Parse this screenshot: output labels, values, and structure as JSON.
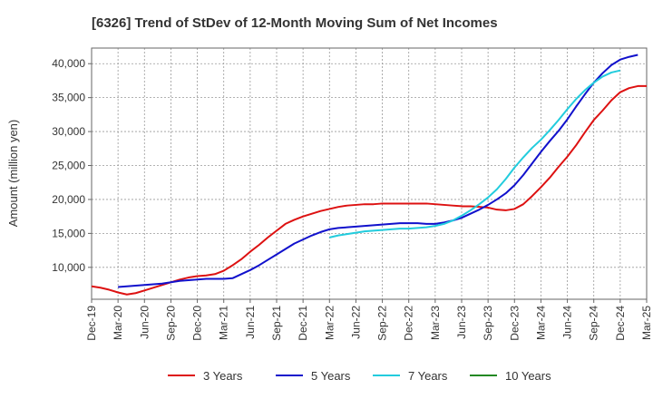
{
  "chart_data": {
    "type": "line",
    "title": "[6326]  Trend of StDev of 12-Month Moving Sum of Net Incomes",
    "xlabel": "",
    "ylabel": "Amount (million yen)",
    "x_ticks": [
      "Dec-19",
      "Mar-20",
      "Jun-20",
      "Sep-20",
      "Dec-20",
      "Mar-21",
      "Jun-21",
      "Sep-21",
      "Dec-21",
      "Mar-22",
      "Jun-22",
      "Sep-22",
      "Dec-22",
      "Mar-23",
      "Jun-23",
      "Sep-23",
      "Dec-23",
      "Mar-24",
      "Jun-24",
      "Sep-24",
      "Dec-24",
      "Mar-25"
    ],
    "y_ticks": [
      10000,
      15000,
      20000,
      25000,
      30000,
      35000,
      40000
    ],
    "y_tick_labels": [
      "10,000",
      "15,000",
      "20,000",
      "25,000",
      "30,000",
      "35,000",
      "40,000"
    ],
    "ylim": [
      5300,
      42300
    ],
    "grid": true,
    "legend_position": "bottom",
    "series": [
      {
        "name": "3 Years",
        "color": "#dd1111",
        "start": "Dec-19",
        "values": [
          7200,
          7000,
          6700,
          6300,
          6000,
          6200,
          6600,
          7000,
          7400,
          7800,
          8200,
          8500,
          8700,
          8800,
          9000,
          9500,
          10300,
          11200,
          12300,
          13300,
          14400,
          15400,
          16400,
          17000,
          17500,
          17900,
          18300,
          18600,
          18900,
          19100,
          19200,
          19300,
          19300,
          19400,
          19400,
          19400,
          19400,
          19400,
          19400,
          19300,
          19200,
          19100,
          19000,
          19000,
          18900,
          18800,
          18500,
          18400,
          18600,
          19300,
          20500,
          21800,
          23200,
          24800,
          26300,
          28000,
          29900,
          31700,
          33100,
          34600,
          35800,
          36400,
          36700,
          36700
        ]
      },
      {
        "name": "5 Years",
        "color": "#1111cc",
        "start": "Mar-20",
        "values": [
          7100,
          7200,
          7300,
          7400,
          7500,
          7600,
          7800,
          8000,
          8100,
          8200,
          8300,
          8300,
          8300,
          8400,
          9000,
          9600,
          10300,
          11100,
          11900,
          12700,
          13500,
          14100,
          14700,
          15200,
          15600,
          15800,
          15900,
          16000,
          16100,
          16200,
          16300,
          16400,
          16500,
          16500,
          16500,
          16400,
          16400,
          16600,
          16900,
          17300,
          17900,
          18500,
          19200,
          20000,
          20900,
          22100,
          23600,
          25300,
          27000,
          28600,
          30100,
          31800,
          33700,
          35500,
          37200,
          38600,
          39800,
          40600,
          41000,
          41300
        ]
      },
      {
        "name": "7 Years",
        "color": "#22ccdd",
        "start": "Mar-22",
        "values": [
          14400,
          14700,
          14900,
          15100,
          15300,
          15400,
          15500,
          15600,
          15700,
          15700,
          15800,
          15900,
          16100,
          16400,
          16900,
          17600,
          18400,
          19300,
          20300,
          21500,
          23000,
          24700,
          26200,
          27600,
          28800,
          30200,
          31700,
          33300,
          34800,
          36100,
          37200,
          38100,
          38700,
          39000
        ]
      },
      {
        "name": "10 Years",
        "color": "#228822",
        "start": "",
        "values": []
      }
    ]
  }
}
